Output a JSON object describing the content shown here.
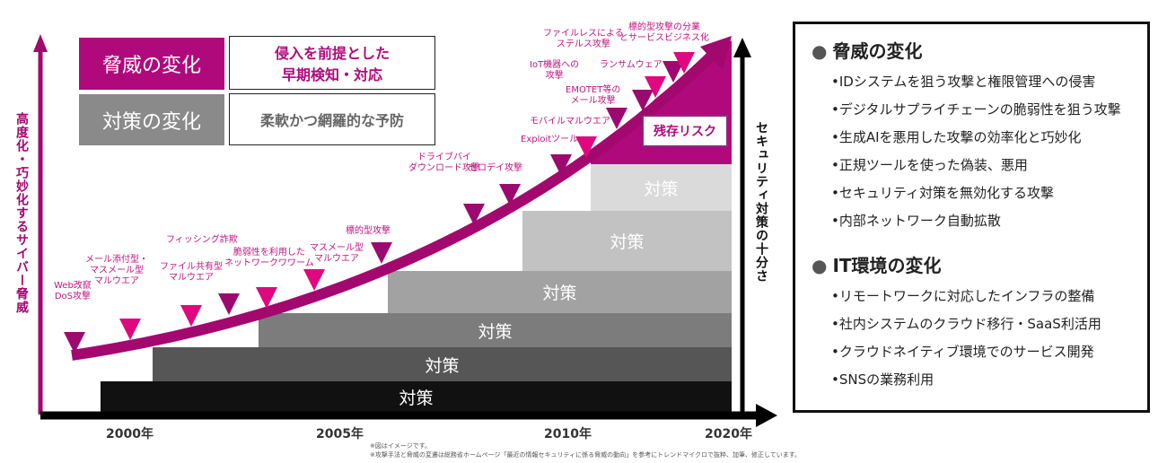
{
  "y_axis_label": "高度化・巧妙化するサイバー脅威",
  "right_axis_label": "セキュリティ対策の十分さ",
  "legend": {
    "threat_label": "脅威の変化",
    "threat_desc_1": "侵入を前提とした",
    "threat_desc_2": "早期検知・対応",
    "measure_label": "対策の変化",
    "measure_desc": "柔軟かつ網羅的な予防"
  },
  "residual_risk": "残存リスク",
  "measures": [
    "対策",
    "対策",
    "対策",
    "対策",
    "対策",
    "対策"
  ],
  "years": [
    "2000年",
    "2005年",
    "2010年",
    "2020年"
  ],
  "events": [
    {
      "l1": "Web改竄",
      "l2": "DoS攻撃"
    },
    {
      "l1": "メール添付型・",
      "l2": "マスメール型",
      "l3": "マルウエア"
    },
    {
      "l1": "ファイル共有型",
      "l2": "マルウエア"
    },
    {
      "l1": "フィッシング詐欺"
    },
    {
      "l1": "脆弱性を利用した",
      "l2": "ネットワークワワーム"
    },
    {
      "l1": "マスメール型",
      "l2": "マルウエア"
    },
    {
      "l1": "標的型攻撃"
    },
    {
      "l1": "ドライブバイ",
      "l2": "ダウンロード攻撃"
    },
    {
      "l1": "ゼロデイ攻撃"
    },
    {
      "l1": "Exploitツール"
    },
    {
      "l1": "モバイルマルウエア"
    },
    {
      "l1": "EMOTET等の",
      "l2": "メール攻撃"
    },
    {
      "l1": "IoT機器への",
      "l2": "攻撃"
    },
    {
      "l1": "ランサムウェア"
    },
    {
      "l1": "ファイルレスによる",
      "l2": "ステルス攻撃"
    },
    {
      "l1": "標的型攻撃の分業",
      "l2": "とサービスビジネス化"
    }
  ],
  "notes": [
    "※図はイメージです。",
    "※攻撃手法と脅威の変遷は総務省ホームページ「最近の情報セキュリティに係る脅威の動向」を参考にトレンドマイクロで抜粋、加筆、修正しています。"
  ],
  "panel": {
    "threat_title": "脅威の変化",
    "threat_items": [
      "•IDシステムを狙う攻撃と権限管理への侵害",
      "•デジタルサプライチェーンの脆弱性を狙う攻撃",
      "•生成AIを悪用した攻撃の効率化と巧妙化",
      "•正規ツールを使った偽装、悪用",
      "•セキュリティ対策を無効化する攻撃",
      "•内部ネットワーク自動拡散"
    ],
    "it_title": "IT環境の変化",
    "it_items": [
      "•リモートワークに対応したインフラの整備",
      "•社内システムのクラウド移行・SaaS利活用",
      "•クラウドネイティブ環境でのサービス開発",
      "•SNSの業務利用"
    ]
  },
  "colors": {
    "magenta": "#b0097c",
    "pink": "#e0087f",
    "dark": "#9c0a6f"
  }
}
